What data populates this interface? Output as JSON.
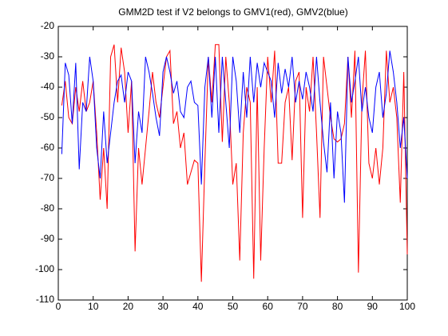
{
  "chart_data": {
    "type": "line",
    "title": "GMM2D test if V2 belongs to GMV1(red), GMV2(blue)",
    "x": [
      1,
      2,
      3,
      4,
      5,
      6,
      7,
      8,
      9,
      10,
      11,
      12,
      13,
      14,
      15,
      16,
      17,
      18,
      19,
      20,
      21,
      22,
      23,
      24,
      25,
      26,
      27,
      28,
      29,
      30,
      31,
      32,
      33,
      34,
      35,
      36,
      37,
      38,
      39,
      40,
      41,
      42,
      43,
      44,
      45,
      46,
      47,
      48,
      49,
      50,
      51,
      52,
      53,
      54,
      55,
      56,
      57,
      58,
      59,
      60,
      61,
      62,
      63,
      64,
      65,
      66,
      67,
      68,
      69,
      70,
      71,
      72,
      73,
      74,
      75,
      76,
      77,
      78,
      79,
      80,
      81,
      82,
      83,
      84,
      85,
      86,
      87,
      88,
      89,
      90,
      91,
      92,
      93,
      94,
      95,
      96,
      97,
      98,
      99,
      100
    ],
    "series": [
      {
        "color": "#ff0000",
        "values": [
          -46,
          -38,
          -50,
          -52,
          -40,
          -48,
          -38,
          -48,
          -45,
          -38,
          -55,
          -77,
          -60,
          -80,
          -30,
          -26,
          -45,
          -27,
          -35,
          -55,
          -38,
          -94,
          -60,
          -72,
          -60,
          -48,
          -35,
          -45,
          -50,
          -40,
          -30,
          -28,
          -52,
          -48,
          -60,
          -55,
          -72,
          -68,
          -64,
          -65,
          -104,
          -65,
          -30,
          -45,
          -26,
          -26,
          -58,
          -30,
          -45,
          -72,
          -65,
          -97,
          -55,
          -40,
          -45,
          -103,
          -40,
          -97,
          -60,
          -30,
          -45,
          -28,
          -65,
          -65,
          -45,
          -40,
          -64,
          -38,
          -35,
          -83,
          -40,
          -48,
          -30,
          -55,
          -83,
          -30,
          -40,
          -50,
          -57,
          -58,
          -57,
          -52,
          -30,
          -50,
          -28,
          -101,
          -45,
          -28,
          -65,
          -70,
          -60,
          -72,
          -60,
          -28,
          -45,
          -40,
          -50,
          -78,
          -35,
          -95
        ]
      },
      {
        "color": "#0000ff",
        "values": [
          -62,
          -32,
          -36,
          -52,
          -32,
          -67,
          -45,
          -48,
          -30,
          -38,
          -60,
          -70,
          -48,
          -65,
          -55,
          -45,
          -38,
          -36,
          -45,
          -35,
          -38,
          -65,
          -48,
          -55,
          -30,
          -35,
          -42,
          -50,
          -56,
          -35,
          -30,
          -35,
          -42,
          -38,
          -48,
          -50,
          -40,
          -38,
          -45,
          -46,
          -72,
          -40,
          -30,
          -50,
          -30,
          -55,
          -30,
          -45,
          -60,
          -30,
          -38,
          -55,
          -35,
          -50,
          -30,
          -45,
          -32,
          -40,
          -32,
          -35,
          -38,
          -50,
          -32,
          -42,
          -34,
          -40,
          -30,
          -45,
          -38,
          -44,
          -35,
          -40,
          -48,
          -30,
          -45,
          -58,
          -68,
          -45,
          -70,
          -48,
          -55,
          -78,
          -30,
          -45,
          -38,
          -30,
          -48,
          -40,
          -50,
          -55,
          -40,
          -35,
          -50,
          -42,
          -28,
          -35,
          -45,
          -60,
          -50,
          -70
        ]
      }
    ],
    "xlim": [
      0,
      100
    ],
    "xticks": [
      0,
      10,
      20,
      30,
      40,
      50,
      60,
      70,
      80,
      90,
      100
    ],
    "ylim": [
      -110,
      -20
    ],
    "yticks": [
      -110,
      -100,
      -90,
      -80,
      -70,
      -60,
      -50,
      -40,
      -30,
      -20
    ],
    "grid": false
  }
}
